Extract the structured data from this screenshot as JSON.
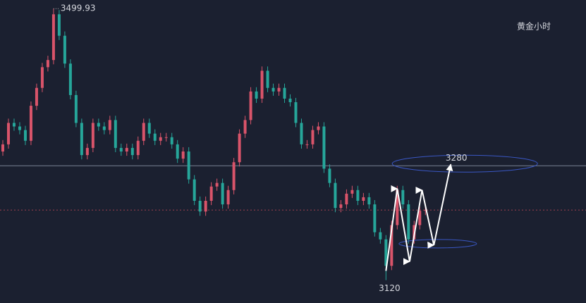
{
  "chart_data": {
    "type": "candlestick",
    "title": "黄金小时",
    "up_color": "#d9546a",
    "down_color": "#26a69a",
    "xlim": [
      0,
      104
    ],
    "ylim": [
      3088,
      3512
    ],
    "open": [
      3300,
      3310,
      3340,
      3335,
      3330,
      3315,
      3364,
      3389,
      3418,
      3428,
      3492,
      3462,
      3423,
      3379,
      3340,
      3295,
      3305,
      3340,
      3335,
      3330,
      3344,
      3305,
      3300,
      3305,
      3295,
      3315,
      3340,
      3325,
      3315,
      3320,
      3320,
      3310,
      3290,
      3300,
      3261,
      3231,
      3216,
      3231,
      3251,
      3256,
      3226,
      3246,
      3285,
      3325,
      3344,
      3384,
      3374,
      3413,
      3389,
      3384,
      3389,
      3374,
      3369,
      3340,
      3310,
      3310,
      3330,
      3335,
      3276,
      3256,
      3221,
      3226,
      3241,
      3246,
      3231,
      3236,
      3226,
      3187,
      3177,
      3140,
      3197,
      3246,
      3226,
      3177,
      3197,
      3217
    ],
    "high": [
      3316,
      3346,
      3346,
      3341,
      3336,
      3370,
      3395,
      3424,
      3434,
      3499.93,
      3498,
      3468,
      3429,
      3385,
      3346,
      3311,
      3346,
      3346,
      3341,
      3350,
      3350,
      3311,
      3311,
      3311,
      3321,
      3346,
      3346,
      3331,
      3326,
      3326,
      3326,
      3316,
      3306,
      3306,
      3267,
      3237,
      3237,
      3257,
      3262,
      3262,
      3252,
      3291,
      3331,
      3350,
      3390,
      3390,
      3419,
      3419,
      3395,
      3395,
      3395,
      3380,
      3375,
      3346,
      3316,
      3336,
      3341,
      3341,
      3282,
      3262,
      3232,
      3247,
      3252,
      3252,
      3242,
      3242,
      3232,
      3193,
      3183,
      3203,
      3252,
      3252,
      3232,
      3203,
      3223,
      3224
    ],
    "low": [
      3294,
      3304,
      3329,
      3324,
      3309,
      3309,
      3358,
      3383,
      3412,
      3422,
      3456,
      3417,
      3373,
      3334,
      3289,
      3289,
      3299,
      3329,
      3324,
      3324,
      3299,
      3294,
      3294,
      3289,
      3289,
      3309,
      3319,
      3309,
      3309,
      3314,
      3304,
      3284,
      3284,
      3255,
      3225,
      3210,
      3210,
      3225,
      3245,
      3220,
      3220,
      3240,
      3279,
      3319,
      3338,
      3368,
      3368,
      3383,
      3378,
      3378,
      3368,
      3363,
      3334,
      3304,
      3304,
      3304,
      3324,
      3270,
      3250,
      3215,
      3215,
      3220,
      3235,
      3225,
      3225,
      3220,
      3181,
      3171,
      3120,
      3134,
      3191,
      3220,
      3171,
      3171,
      3191,
      3211
    ],
    "close": [
      3310,
      3340,
      3335,
      3330,
      3315,
      3364,
      3389,
      3418,
      3428,
      3492,
      3462,
      3423,
      3379,
      3340,
      3295,
      3305,
      3340,
      3335,
      3330,
      3344,
      3305,
      3300,
      3305,
      3295,
      3315,
      3340,
      3325,
      3315,
      3320,
      3320,
      3310,
      3290,
      3300,
      3261,
      3231,
      3216,
      3231,
      3251,
      3256,
      3226,
      3246,
      3285,
      3325,
      3344,
      3384,
      3374,
      3413,
      3389,
      3384,
      3389,
      3374,
      3369,
      3340,
      3310,
      3310,
      3330,
      3335,
      3276,
      3256,
      3221,
      3226,
      3241,
      3246,
      3231,
      3236,
      3226,
      3187,
      3177,
      3140,
      3197,
      3246,
      3226,
      3177,
      3197,
      3217,
      3218
    ],
    "level": 3280,
    "arrow_path": {
      "x": [
        68,
        70,
        72.2,
        74.4,
        76.5,
        79.5
      ],
      "values": [
        3133,
        3248,
        3146,
        3246,
        3169,
        3282
      ]
    },
    "ellipses": [
      {
        "x": 82,
        "y": 3283
      },
      {
        "x": 77.2,
        "y": 3171
      }
    ]
  }
}
